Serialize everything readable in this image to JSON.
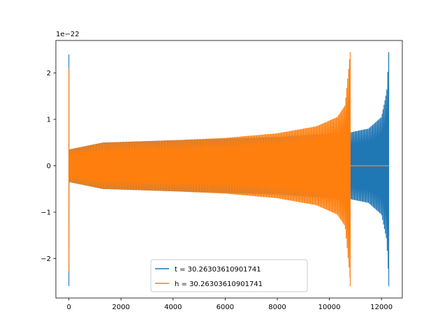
{
  "chart_data": {
    "type": "line",
    "title": "",
    "xlabel": "",
    "ylabel": "",
    "offset_text": "1e−22",
    "xlim": [
      -500,
      12800
    ],
    "ylim": [
      -2.85,
      2.7
    ],
    "x_ticks": [
      0,
      2000,
      4000,
      6000,
      8000,
      10000,
      12000
    ],
    "x_tick_labels": [
      "0",
      "2000",
      "4000",
      "6000",
      "8000",
      "10000",
      "12000"
    ],
    "y_ticks": [
      -2,
      -1,
      0,
      1,
      2
    ],
    "y_tick_labels": [
      "−2",
      "−1",
      "0",
      "1",
      "2"
    ],
    "grid": false,
    "legend_position": "lower-center",
    "series": [
      {
        "name": "t = 30.26303610901741",
        "color": "#1f77b4",
        "start": 0,
        "end": 12280,
        "plateau_before": 1300,
        "spike_at_start": 2.4,
        "envelope": [
          [
            0,
            0.35
          ],
          [
            1300,
            0.5
          ],
          [
            4000,
            0.55
          ],
          [
            8000,
            0.62
          ],
          [
            10800,
            0.72
          ],
          [
            11500,
            0.8
          ],
          [
            12000,
            1.05
          ],
          [
            12200,
            1.6
          ],
          [
            12280,
            2.45
          ]
        ]
      },
      {
        "name": "h = 30.26303610901741",
        "color": "#ff7f0e",
        "start": 0,
        "end": 10800,
        "plateau_before": 1300,
        "spike_at_start": 2.1,
        "envelope": [
          [
            0,
            0.35
          ],
          [
            1300,
            0.5
          ],
          [
            4000,
            0.55
          ],
          [
            6000,
            0.6
          ],
          [
            8000,
            0.7
          ],
          [
            9500,
            0.85
          ],
          [
            10300,
            1.05
          ],
          [
            10600,
            1.3
          ],
          [
            10800,
            2.45
          ]
        ]
      }
    ]
  }
}
